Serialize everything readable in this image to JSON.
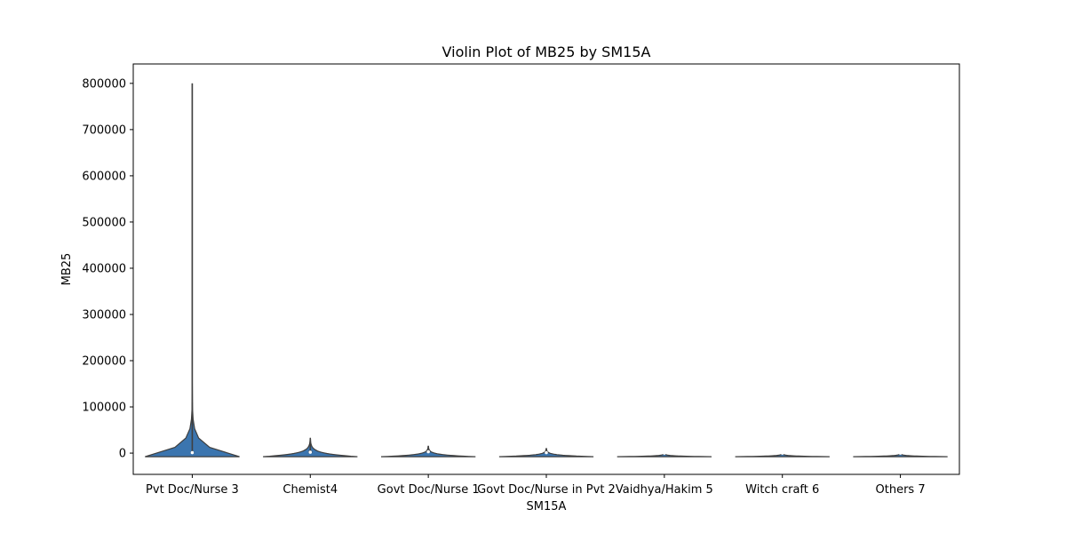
{
  "chart_data": {
    "type": "violin",
    "title": "Violin Plot of MB25 by SM15A",
    "xlabel": "SM15A",
    "ylabel": "MB25",
    "ylim": [
      -46000,
      842000
    ],
    "yticks": [
      0,
      100000,
      200000,
      300000,
      400000,
      500000,
      600000,
      700000,
      800000
    ],
    "categories": [
      "Pvt Doc/Nurse 3",
      "Chemist4",
      "Govt Doc/Nurse 1",
      "Govt Doc/Nurse in Pvt 2",
      "Vaidhya/Hakim 5",
      "Witch craft 6",
      "Others 7"
    ],
    "series": [
      {
        "category": "Pvt Doc/Nurse 3",
        "min": 0,
        "max": 800000,
        "q1": 0,
        "median": 1000,
        "q3": 3000
      },
      {
        "category": "Chemist4",
        "min": 0,
        "max": 32000,
        "q1": 500,
        "median": 2000,
        "q3": 5000
      },
      {
        "category": "Govt Doc/Nurse 1",
        "min": 0,
        "max": 15000,
        "q1": 1000,
        "median": 3000,
        "q3": 7000
      },
      {
        "category": "Govt Doc/Nurse in Pvt 2",
        "min": 0,
        "max": 10000,
        "q1": 0,
        "median": 1000,
        "q3": 2000
      },
      {
        "category": "Vaidhya/Hakim 5",
        "min": 0,
        "max": 0,
        "q1": 0,
        "median": 0,
        "q3": 0
      },
      {
        "category": "Witch craft 6",
        "min": 0,
        "max": 0,
        "q1": 0,
        "median": 0,
        "q3": 0
      },
      {
        "category": "Others 7",
        "min": 0,
        "max": 0,
        "q1": 0,
        "median": 0,
        "q3": 0
      }
    ],
    "colors": {
      "violin_fill": "#3b75af",
      "violin_edge": "#3f3f3f",
      "box": "#3f3f3f",
      "frame": "#000000"
    },
    "grid": false,
    "legend": "none"
  }
}
